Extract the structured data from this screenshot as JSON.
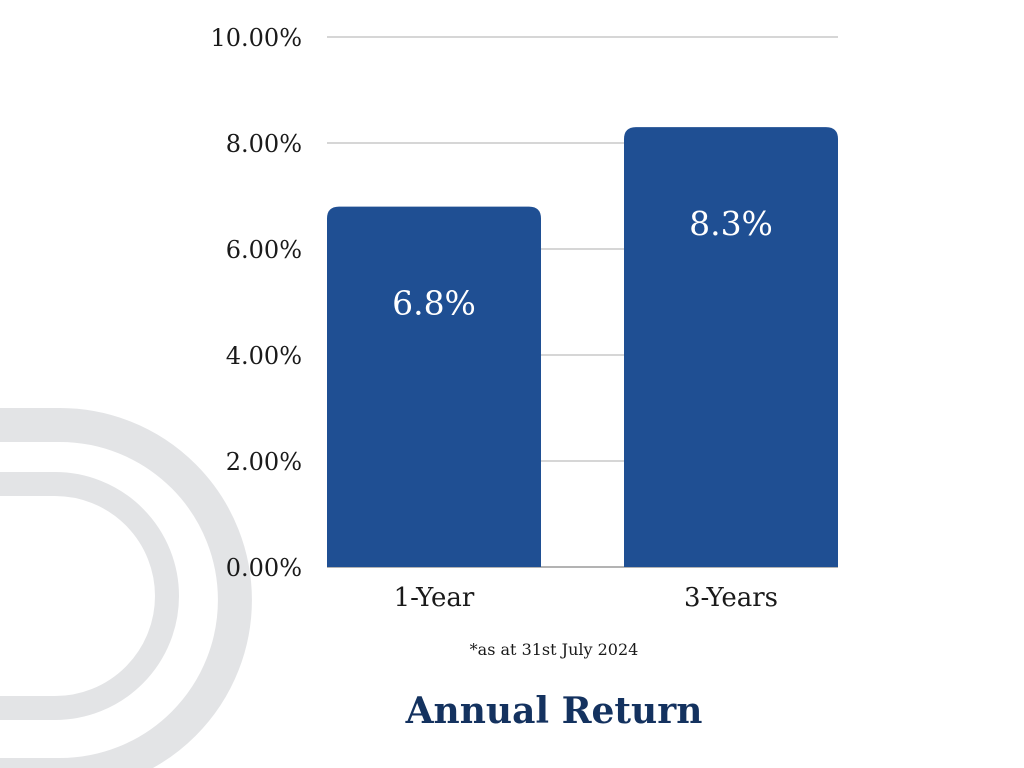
{
  "colors": {
    "bar": "#1f4f93",
    "title": "#14325f",
    "grid": "#c8c8c8",
    "watermark": "#e3e4e6"
  },
  "chart_data": {
    "type": "bar",
    "categories": [
      "1-Year",
      "3-Years"
    ],
    "values": [
      6.8,
      8.3
    ],
    "data_labels": [
      "6.8%",
      "8.3%"
    ],
    "title": "Annual Return",
    "footnote": "*as at 31st July 2024",
    "xlabel": "",
    "ylabel": "",
    "ylim": [
      0,
      10
    ],
    "yticks": [
      0,
      2,
      4,
      6,
      8,
      10
    ],
    "ytick_labels": [
      "0.00%",
      "2.00%",
      "4.00%",
      "6.00%",
      "8.00%",
      "10.00%"
    ],
    "grid": true,
    "legend": "none"
  }
}
